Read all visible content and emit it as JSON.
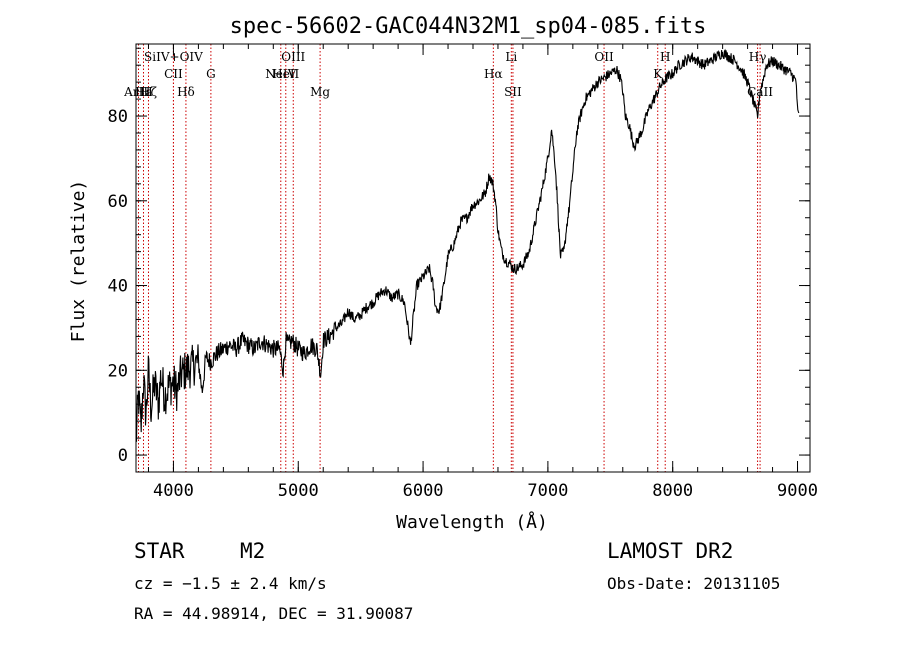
{
  "chart_data": {
    "type": "line",
    "title": "spec-56602-GAC044N32M1_sp04-085.fits",
    "xlabel": "Wavelength (Å)",
    "ylabel": "Flux (relative)",
    "xlim": [
      3700,
      9100
    ],
    "ylim": [
      -4,
      97
    ],
    "xticks": [
      4000,
      5000,
      6000,
      7000,
      8000,
      9000
    ],
    "yticks": [
      0,
      20,
      40,
      60,
      80
    ],
    "series": [
      {
        "name": "spectrum",
        "x": [
          3700,
          3720,
          3740,
          3760,
          3780,
          3800,
          3820,
          3850,
          3880,
          3900,
          3930,
          3960,
          4000,
          4030,
          4060,
          4100,
          4150,
          4200,
          4230,
          4260,
          4300,
          4350,
          4400,
          4450,
          4500,
          4550,
          4600,
          4650,
          4700,
          4750,
          4800,
          4850,
          4880,
          4900,
          4920,
          4950,
          5000,
          5050,
          5100,
          5150,
          5180,
          5200,
          5250,
          5300,
          5350,
          5400,
          5450,
          5500,
          5550,
          5600,
          5650,
          5700,
          5750,
          5800,
          5850,
          5880,
          5900,
          5920,
          5950,
          6000,
          6050,
          6080,
          6100,
          6130,
          6160,
          6200,
          6250,
          6300,
          6350,
          6400,
          6450,
          6500,
          6530,
          6560,
          6580,
          6600,
          6630,
          6660,
          6700,
          6720,
          6750,
          6800,
          6850,
          6900,
          6950,
          7000,
          7030,
          7060,
          7080,
          7100,
          7130,
          7150,
          7170,
          7200,
          7230,
          7260,
          7300,
          7350,
          7400,
          7450,
          7500,
          7550,
          7580,
          7600,
          7620,
          7650,
          7680,
          7700,
          7730,
          7760,
          7800,
          7850,
          7900,
          7950,
          8000,
          8050,
          8100,
          8150,
          8200,
          8250,
          8300,
          8350,
          8400,
          8450,
          8500,
          8550,
          8600,
          8650,
          8680,
          8700,
          8720,
          8750,
          8800,
          8850,
          8900,
          8950,
          8990,
          9000,
          9010
        ],
        "y": [
          3,
          14,
          6,
          18,
          9,
          20,
          11,
          17,
          12,
          19,
          14,
          16,
          17,
          15,
          19,
          20,
          21,
          22,
          15,
          23,
          22,
          24,
          25,
          26,
          25,
          27,
          26,
          25,
          27,
          26,
          25,
          25,
          20,
          27,
          26,
          27,
          25,
          24,
          26,
          25,
          19,
          27,
          28,
          30,
          31,
          34,
          32,
          33,
          35,
          36,
          38,
          39,
          37,
          38,
          36,
          30,
          26,
          32,
          40,
          42,
          44,
          40,
          35,
          34,
          39,
          47,
          50,
          55,
          56,
          59,
          60,
          62,
          66,
          64,
          60,
          53,
          48,
          46,
          45,
          44,
          44,
          45,
          48,
          55,
          62,
          70,
          77,
          68,
          58,
          47,
          48,
          54,
          58,
          67,
          76,
          80,
          84,
          86,
          88,
          89,
          90,
          91,
          89,
          86,
          80,
          78,
          74,
          73,
          75,
          77,
          81,
          84,
          87,
          89,
          90,
          92,
          93,
          94,
          93,
          92,
          93,
          94,
          95,
          94,
          93,
          91,
          88,
          83,
          80,
          86,
          88,
          92,
          93,
          92,
          91,
          90,
          88,
          81,
          80
        ]
      }
    ],
    "lines": [
      {
        "label": "ArIII",
        "x": 3720,
        "row": "lower"
      },
      {
        "label": "Hε",
        "x": 3760,
        "row": "lower"
      },
      {
        "label": "Hζ",
        "x": 3800,
        "row": "lower"
      },
      {
        "label": "SiIV+OIV",
        "x": 4000,
        "row": "upper"
      },
      {
        "label": "CII",
        "x": 4000,
        "row": "middle"
      },
      {
        "label": "Hδ",
        "x": 4100,
        "row": "lower"
      },
      {
        "label": "G",
        "x": 4300,
        "row": "middle"
      },
      {
        "label": "OIII",
        "x": 4960,
        "row": "upper"
      },
      {
        "label": "NeIV",
        "x": 4860,
        "row": "middle"
      },
      {
        "label": "HeII",
        "x": 4900,
        "row": "middle"
      },
      {
        "label": "Mg",
        "x": 5175,
        "row": "lower"
      },
      {
        "label": "Li",
        "x": 6707,
        "row": "upper"
      },
      {
        "label": "Hα",
        "x": 6563,
        "row": "middle"
      },
      {
        "label": "SII",
        "x": 6720,
        "row": "lower"
      },
      {
        "label": "OII",
        "x": 7450,
        "row": "upper"
      },
      {
        "label": "K",
        "x": 7880,
        "row": "middle"
      },
      {
        "label": "H",
        "x": 7940,
        "row": "upper"
      },
      {
        "label": "Hγ",
        "x": 8680,
        "row": "upper"
      },
      {
        "label": "CaII",
        "x": 8700,
        "row": "lower"
      }
    ],
    "line_color": "#cc0000"
  },
  "info": {
    "object_class": "STAR",
    "subclass": "M2",
    "survey": "LAMOST DR2",
    "cz": "cz = −1.5 ± 2.4 km/s",
    "obs_date": "Obs-Date: 20131105",
    "coords": "RA =  44.98914, DEC =  31.90087"
  }
}
